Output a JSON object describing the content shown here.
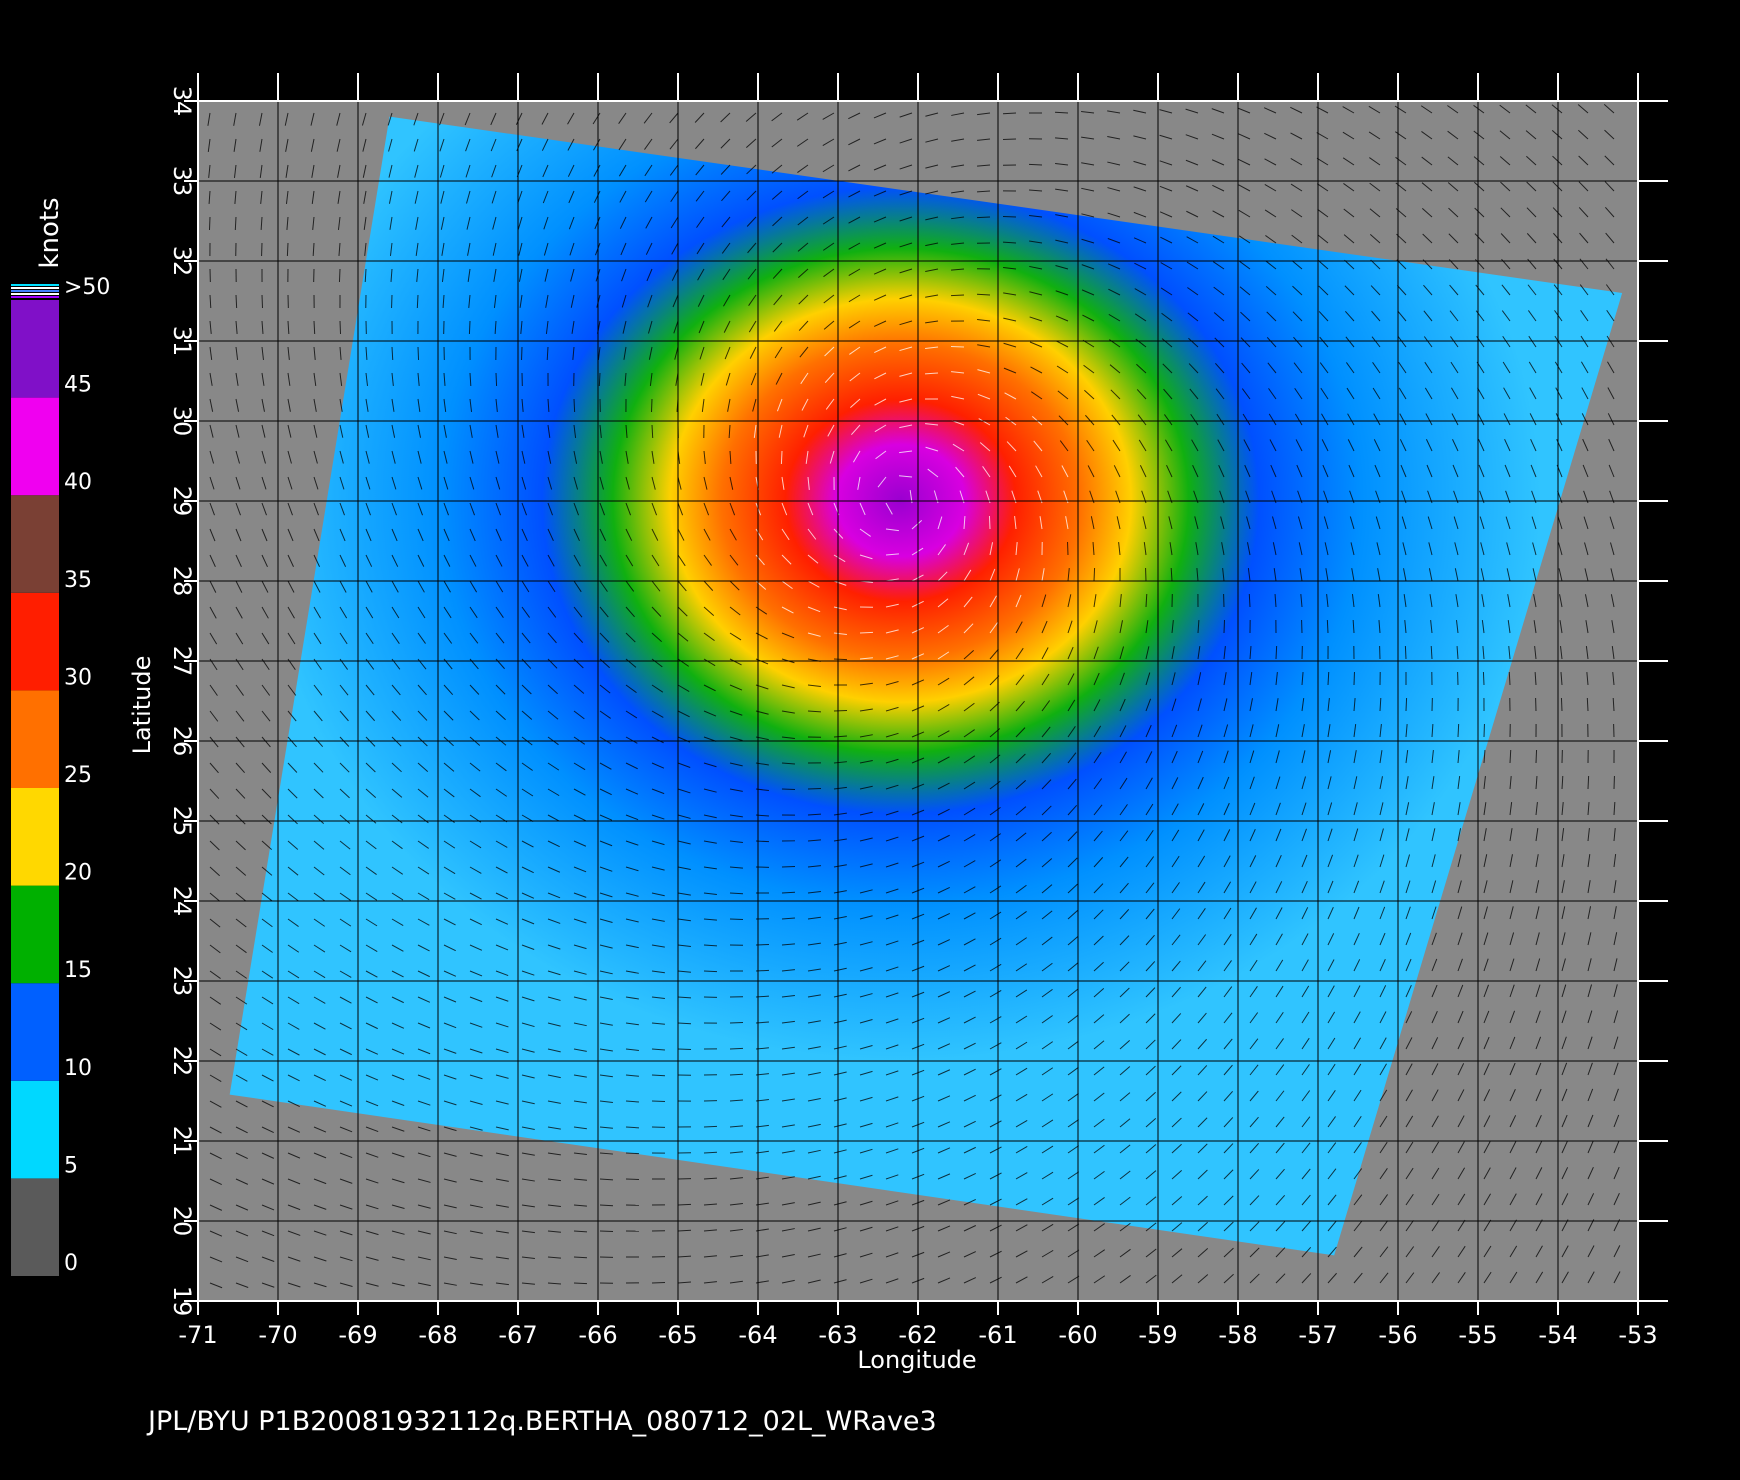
{
  "map": {
    "x_label": "Longitude",
    "y_label": "Latitude",
    "xlim": [
      -71,
      -53
    ],
    "ylim": [
      19,
      34
    ],
    "xticks": [
      -71,
      -70,
      -69,
      -68,
      -67,
      -66,
      -65,
      -64,
      -63,
      -62,
      -61,
      -60,
      -59,
      -58,
      -57,
      -56,
      -55,
      -54,
      -53
    ],
    "yticks": [
      19,
      20,
      21,
      22,
      23,
      24,
      25,
      26,
      27,
      28,
      29,
      30,
      31,
      32,
      33,
      34
    ],
    "colorbar": {
      "unit": "knots",
      "ticks": [
        0,
        5,
        10,
        15,
        20,
        25,
        30,
        35,
        40,
        45,
        {
          "value": 50,
          "label": ">50"
        }
      ],
      "colors": [
        "#5a5a5a",
        "#00d8ff",
        "#0060ff",
        "#00b000",
        "#ffd800",
        "#ff7000",
        "#ff1e00",
        "#7a4034",
        "#f000f0",
        "#8010c8"
      ]
    },
    "caption": "JPL/BYU  P1B20081932112q.BERTHA_080712_02L_WRave3"
  }
}
